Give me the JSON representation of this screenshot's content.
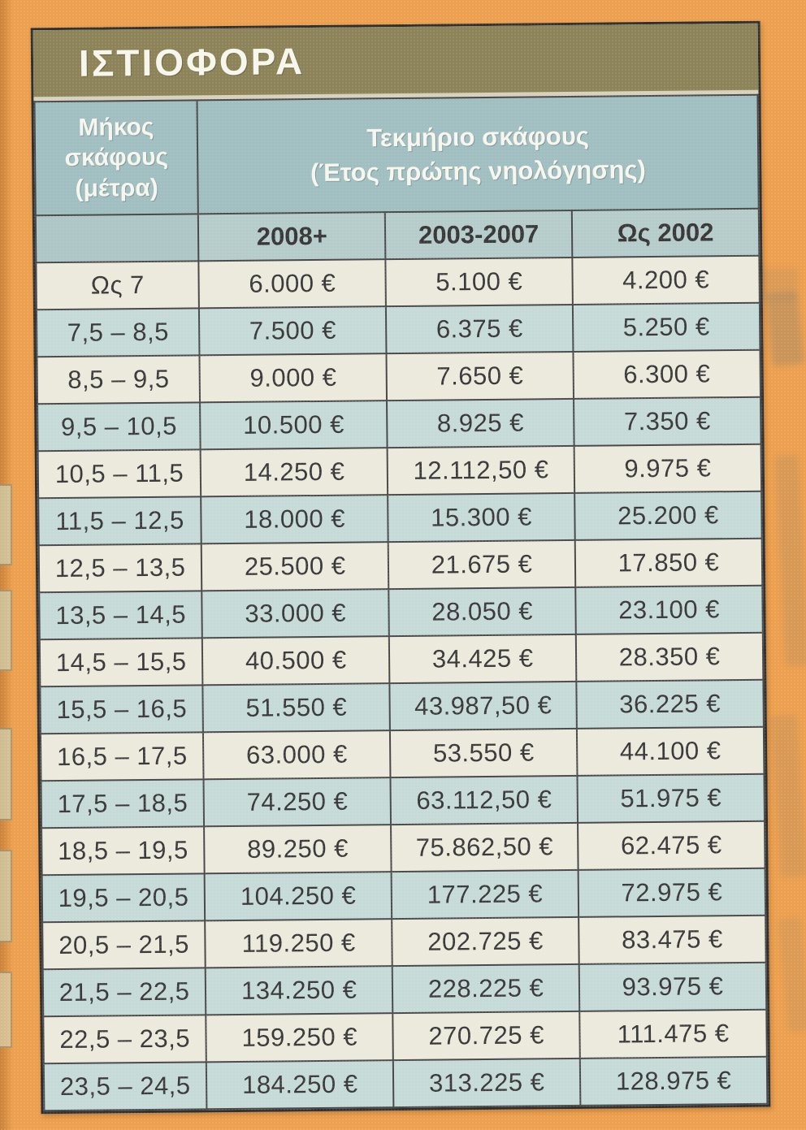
{
  "table": {
    "title": "ΙΣΤΙΟΦΟΡΑ",
    "length_header": "Μήκος σκάφους (μέτρα)",
    "value_header_line1": "Τεκμήριο σκάφους",
    "value_header_line2": "(Έτος πρώτης νηολόγησης)",
    "year_columns": [
      "2008+",
      "2003-2007",
      "Ως 2002"
    ],
    "rows": [
      {
        "length": "Ως 7",
        "values": [
          "6.000 €",
          "5.100 €",
          "4.200 €"
        ]
      },
      {
        "length": "7,5 – 8,5",
        "values": [
          "7.500 €",
          "6.375 €",
          "5.250 €"
        ]
      },
      {
        "length": "8,5 – 9,5",
        "values": [
          "9.000 €",
          "7.650 €",
          "6.300 €"
        ]
      },
      {
        "length": "9,5 – 10,5",
        "values": [
          "10.500 €",
          "8.925 €",
          "7.350 €"
        ]
      },
      {
        "length": "10,5 – 11,5",
        "values": [
          "14.250 €",
          "12.112,50 €",
          "9.975 €"
        ]
      },
      {
        "length": "11,5 – 12,5",
        "values": [
          "18.000 €",
          "15.300 €",
          "25.200 €"
        ]
      },
      {
        "length": "12,5 – 13,5",
        "values": [
          "25.500 €",
          "21.675 €",
          "17.850 €"
        ]
      },
      {
        "length": "13,5 – 14,5",
        "values": [
          "33.000 €",
          "28.050 €",
          "23.100 €"
        ]
      },
      {
        "length": "14,5 – 15,5",
        "values": [
          "40.500 €",
          "34.425 €",
          "28.350 €"
        ]
      },
      {
        "length": "15,5 – 16,5",
        "values": [
          "51.550 €",
          "43.987,50 €",
          "36.225 €"
        ]
      },
      {
        "length": "16,5 – 17,5",
        "values": [
          "63.000 €",
          "53.550 €",
          "44.100 €"
        ]
      },
      {
        "length": "17,5 – 18,5",
        "values": [
          "74.250 €",
          "63.112,50 €",
          "51.975 €"
        ]
      },
      {
        "length": "18,5 – 19,5",
        "values": [
          "89.250 €",
          "75.862,50 €",
          "62.475 €"
        ]
      },
      {
        "length": "19,5 – 20,5",
        "values": [
          "104.250 €",
          "177.225 €",
          "72.975 €"
        ]
      },
      {
        "length": "20,5 – 21,5",
        "values": [
          "119.250 €",
          "202.725 €",
          "83.475 €"
        ]
      },
      {
        "length": "21,5 – 22,5",
        "values": [
          "134.250 €",
          "228.225 €",
          "93.975 €"
        ]
      },
      {
        "length": "22,5 – 23,5",
        "values": [
          "159.250 €",
          "270.725 €",
          "111.475 €"
        ]
      },
      {
        "length": "23,5 – 24,5",
        "values": [
          "184.250 €",
          "313.225 €",
          "128.975 €"
        ]
      }
    ]
  },
  "colors": {
    "paper": "#eda04f",
    "title_bar": "#8c8359",
    "header_teal": "#a1bec0",
    "year_header": "#b6cccb",
    "row_light": "#ece9dd",
    "row_teal": "#c6dad8",
    "grid_line": "#4a4a4a",
    "text_dark": "#3a3a3a",
    "text_white": "#f6f6ee"
  }
}
